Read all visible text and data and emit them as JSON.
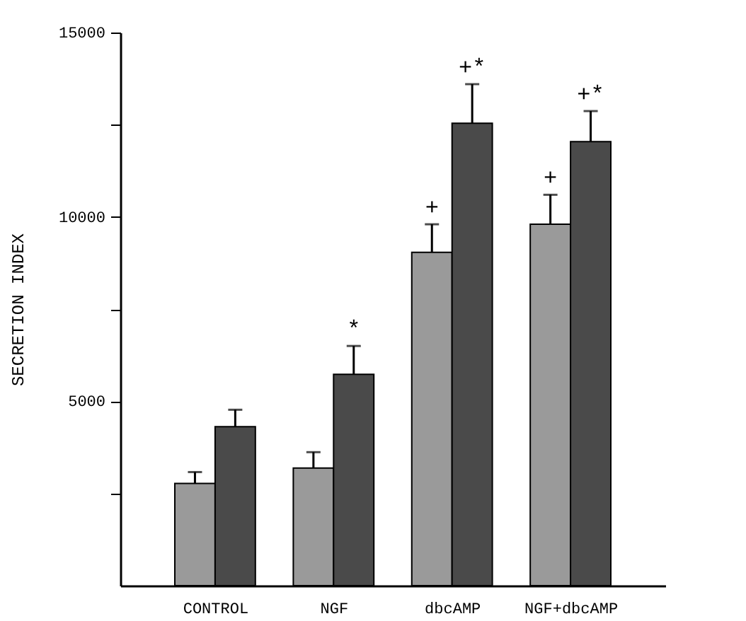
{
  "chart_data": {
    "type": "bar",
    "ylabel": "SECRETION INDEX",
    "categories": [
      "CONTROL",
      "NGF",
      "dbcAMP",
      "NGF+dbcAMP"
    ],
    "series": [
      {
        "color": "#9a9a9a",
        "values": [
          2770,
          3190,
          9040,
          9800
        ],
        "errors": [
          310,
          430,
          760,
          800
        ],
        "value_labels": [
          null,
          null,
          "+",
          "+"
        ]
      },
      {
        "color": "#4a4a4a",
        "values": [
          4310,
          5730,
          12540,
          12040
        ],
        "errors": [
          460,
          770,
          1060,
          830
        ],
        "value_labels": [
          null,
          "*",
          "+*",
          "+*"
        ]
      }
    ],
    "ylim": [
      0,
      15000
    ],
    "yticks": [
      {
        "value": 2500,
        "label": null
      },
      5000,
      {
        "value": 7500,
        "label": null
      },
      10000,
      {
        "value": 12500,
        "label": null
      },
      15000
    ],
    "grid": false
  }
}
